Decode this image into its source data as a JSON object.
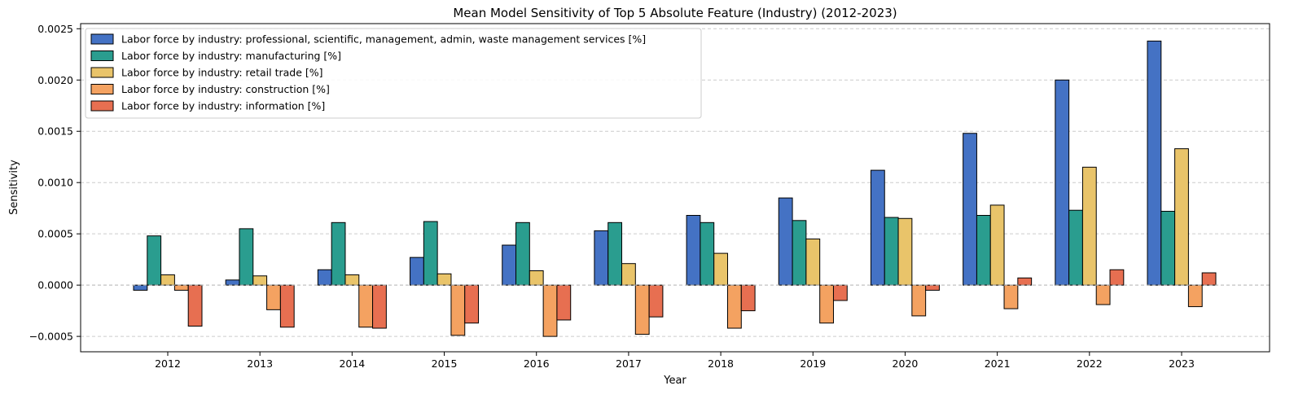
{
  "chart_data": {
    "type": "bar",
    "title": "Mean Model Sensitivity of Top 5 Absolute Feature (Industry) (2012-2023)",
    "xlabel": "Year",
    "ylabel": "Sensitivity",
    "ylim": [
      -0.00065,
      0.00255
    ],
    "yticks": [
      -0.0005,
      0.0,
      0.0005,
      0.001,
      0.0015,
      0.002,
      0.0025
    ],
    "ytick_labels": [
      "−0.0005",
      "0.0000",
      "0.0005",
      "0.0010",
      "0.0015",
      "0.0020",
      "0.0025"
    ],
    "categories": [
      "2012",
      "2013",
      "2014",
      "2015",
      "2016",
      "2017",
      "2018",
      "2019",
      "2020",
      "2021",
      "2022",
      "2023"
    ],
    "grid": "y-dashed",
    "legend_position": "top-left",
    "series": [
      {
        "name": "Labor force by industry: professional, scientific, management, admin, waste management services [%]",
        "color": "#4472C4",
        "values": [
          -5e-05,
          5e-05,
          0.00015,
          0.00027,
          0.00039,
          0.00053,
          0.00068,
          0.00085,
          0.00112,
          0.00148,
          0.002,
          0.00238
        ]
      },
      {
        "name": "Labor force by industry: manufacturing [%]",
        "color": "#2A9D8F",
        "values": [
          0.00048,
          0.00055,
          0.00061,
          0.00062,
          0.00061,
          0.00061,
          0.00061,
          0.00063,
          0.00066,
          0.00068,
          0.00073,
          0.00072
        ]
      },
      {
        "name": "Labor force by industry: retail trade [%]",
        "color": "#E9C46A",
        "values": [
          0.0001,
          9e-05,
          0.0001,
          0.00011,
          0.00014,
          0.00021,
          0.00031,
          0.00045,
          0.00065,
          0.00078,
          0.00115,
          0.00133
        ]
      },
      {
        "name": "Labor force by industry: construction [%]",
        "color": "#F4A261",
        "values": [
          -5e-05,
          -0.00024,
          -0.00041,
          -0.00049,
          -0.0005,
          -0.00048,
          -0.00042,
          -0.00037,
          -0.0003,
          -0.00023,
          -0.00019,
          -0.00021
        ]
      },
      {
        "name": "Labor force by industry: information [%]",
        "color": "#E76F51",
        "values": [
          -0.0004,
          -0.00041,
          -0.00042,
          -0.00037,
          -0.00034,
          -0.00031,
          -0.00025,
          -0.00015,
          -5e-05,
          7e-05,
          0.00015,
          0.00012
        ]
      }
    ]
  }
}
